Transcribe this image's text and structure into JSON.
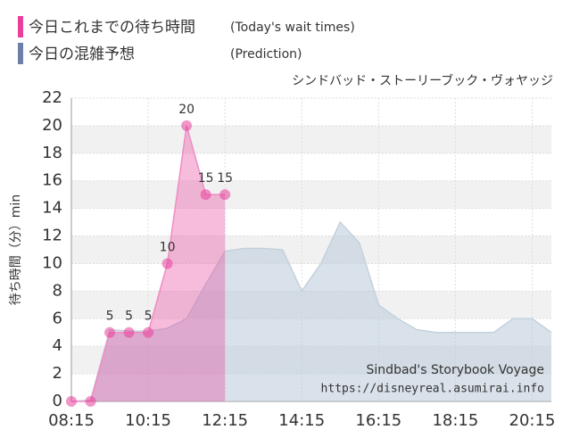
{
  "chart_data": {
    "type": "area",
    "legend_title": "今日これまでの待ち時間",
    "legend_note": "(Today's wait times)",
    "legend_title2": "今日の混雑予想",
    "legend_note2": "(Prediction)",
    "subtitle": "シンドバッド・ストーリーブック・ヴォヤッジ",
    "y_label": "待ち時間（分）min",
    "watermark": "Sindbad's Storybook Voyage",
    "watermark_url": "https://disneyreal.asumirai.info",
    "x": [
      "08:15",
      "08:45",
      "09:15",
      "09:45",
      "10:15",
      "10:45",
      "11:15",
      "11:45",
      "12:15",
      "12:45",
      "13:15",
      "13:45",
      "14:15",
      "14:45",
      "15:15",
      "15:45",
      "16:15",
      "16:45",
      "17:15",
      "17:45",
      "18:15",
      "18:45",
      "19:15",
      "19:45",
      "20:15",
      "20:45"
    ],
    "series": [
      {
        "name": "今日これまでの待ち時間",
        "color": "#e8409a",
        "values": [
          0,
          0,
          5,
          5,
          5,
          10,
          20,
          15,
          15,
          null,
          null,
          null,
          null,
          null,
          null,
          null,
          null,
          null,
          null,
          null,
          null,
          null,
          null,
          null,
          null,
          null
        ]
      },
      {
        "name": "今日の混雑予想",
        "color": "#6b7fa8",
        "values": [
          0,
          0.1,
          5.2,
          5.1,
          5.1,
          5.3,
          6,
          8.5,
          10.9,
          11.1,
          11.1,
          11,
          8,
          10,
          13,
          11.5,
          7,
          6,
          5.2,
          5,
          5,
          5,
          5,
          6,
          6,
          5
        ]
      }
    ],
    "xlim": [
      "08:15",
      "20:45"
    ],
    "xticks": [
      "08:15",
      "10:15",
      "12:15",
      "14:15",
      "16:15",
      "18:15",
      "20:15"
    ],
    "ylim": [
      0,
      22
    ],
    "yticks": [
      0,
      2,
      4,
      6,
      8,
      10,
      12,
      14,
      16,
      18,
      20,
      22
    ],
    "grid": true
  }
}
